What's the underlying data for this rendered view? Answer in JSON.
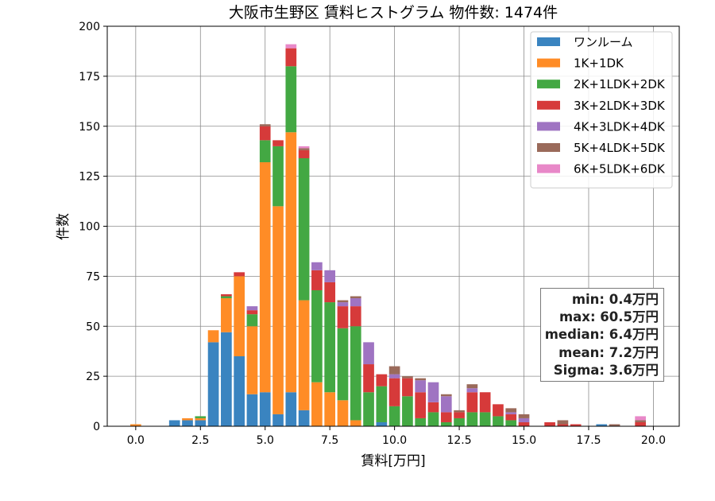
{
  "chart_data": {
    "type": "bar",
    "stacked": true,
    "title": "大阪市生野区 賃料ヒストグラム 物件数: 1474件",
    "xlabel": "賃料[万円]",
    "ylabel": "件数",
    "xlim": [
      -1.1,
      21.0
    ],
    "ylim": [
      0,
      200
    ],
    "xticks": [
      "0.0",
      "2.5",
      "5.0",
      "7.5",
      "10.0",
      "12.5",
      "15.0",
      "17.5",
      "20.0"
    ],
    "yticks": [
      "0",
      "25",
      "50",
      "75",
      "100",
      "125",
      "150",
      "175",
      "200"
    ],
    "grid": true,
    "legend_position": "top-right",
    "bin_width": 0.5,
    "bins": [
      0.0,
      1.5,
      2.0,
      2.5,
      3.0,
      3.5,
      4.0,
      4.5,
      5.0,
      5.5,
      6.0,
      6.5,
      7.0,
      7.5,
      8.0,
      8.5,
      9.0,
      9.5,
      10.0,
      10.5,
      11.0,
      11.5,
      12.0,
      12.5,
      13.0,
      13.5,
      14.0,
      14.5,
      15.0,
      16.0,
      16.5,
      17.0,
      18.0,
      18.5,
      19.5
    ],
    "series": [
      {
        "name": "ワンルーム",
        "color": "#3a84c0",
        "values": [
          0,
          3,
          3,
          3,
          42,
          47,
          35,
          16,
          17,
          6,
          17,
          8,
          0,
          0,
          0,
          0,
          0,
          2,
          0,
          0,
          0,
          0,
          0,
          0,
          0,
          0,
          0,
          0,
          0,
          0,
          0,
          0,
          1,
          0,
          0
        ]
      },
      {
        "name": "1K+1DK",
        "color": "#ff8c26",
        "values": [
          1,
          0,
          1,
          1,
          6,
          17,
          40,
          34,
          115,
          104,
          130,
          55,
          22,
          17,
          13,
          3,
          0,
          0,
          0,
          0,
          0,
          0,
          0,
          0,
          0,
          0,
          0,
          0,
          0,
          0,
          0,
          0,
          0,
          0,
          0
        ]
      },
      {
        "name": "2K+1LDK+2DK",
        "color": "#43a843",
        "values": [
          0,
          0,
          0,
          1,
          0,
          1,
          0,
          6,
          11,
          30,
          33,
          71,
          46,
          45,
          36,
          47,
          17,
          18,
          10,
          15,
          4,
          7,
          2,
          4,
          7,
          7,
          5,
          3,
          0,
          0,
          0,
          0,
          0,
          0,
          0
        ]
      },
      {
        "name": "3K+2LDK+3DK",
        "color": "#d63a3a",
        "values": [
          0,
          0,
          0,
          0,
          0,
          1,
          2,
          2,
          7,
          3,
          9,
          4,
          10,
          10,
          11,
          10,
          14,
          6,
          14,
          9,
          13,
          5,
          5,
          3,
          10,
          10,
          6,
          3,
          2,
          2,
          1,
          1,
          0,
          0,
          2
        ]
      },
      {
        "name": "4K+3LDK+4DK",
        "color": "#9f74c2",
        "values": [
          0,
          0,
          0,
          0,
          0,
          0,
          0,
          2,
          0,
          0,
          0,
          0,
          4,
          6,
          2,
          4,
          11,
          0,
          2,
          0,
          6,
          10,
          8,
          0,
          2,
          0,
          0,
          1,
          2,
          0,
          0,
          0,
          0,
          0,
          0
        ]
      },
      {
        "name": "5K+4LDK+5DK",
        "color": "#9a6a5a",
        "values": [
          0,
          0,
          0,
          0,
          0,
          0,
          0,
          0,
          1,
          0,
          0,
          1,
          0,
          0,
          1,
          1,
          0,
          0,
          4,
          1,
          1,
          0,
          1,
          1,
          2,
          0,
          0,
          2,
          2,
          0,
          2,
          0,
          0,
          1,
          1
        ]
      },
      {
        "name": "6K+5LDK+6DK",
        "color": "#e888c8",
        "values": [
          0,
          0,
          0,
          0,
          0,
          0,
          0,
          0,
          0,
          0,
          2,
          1,
          0,
          0,
          0,
          0,
          0,
          0,
          0,
          0,
          0,
          0,
          0,
          0,
          0,
          0,
          0,
          0,
          0,
          0,
          0,
          0,
          0,
          0,
          2
        ]
      }
    ],
    "annotation": {
      "min": "min: 0.4万円",
      "max": "max: 60.5万円",
      "median": "median: 6.4万円",
      "mean": "mean: 7.2万円",
      "sigma": "Sigma: 3.6万円"
    }
  }
}
